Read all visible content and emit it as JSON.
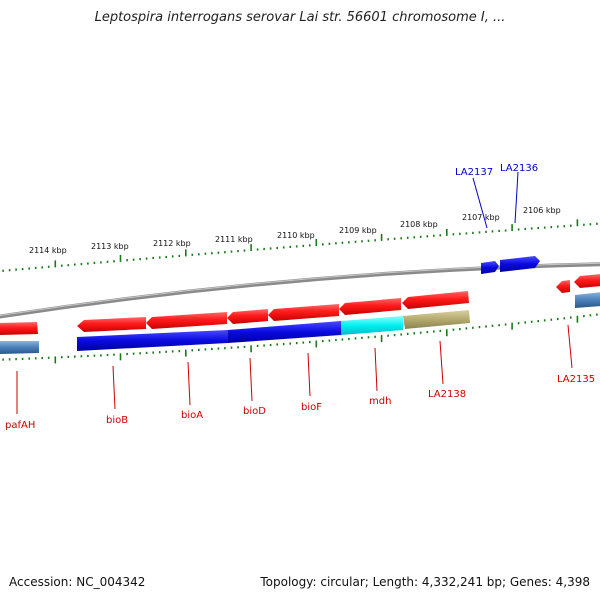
{
  "title": "Leptospira interrogans serovar Lai str. 56601 chromosome I, ...",
  "footer": {
    "accession": "Accession: NC_004342",
    "summary": "Topology: circular; Length: 4,332,241 bp; Genes: 4,398"
  },
  "colors": {
    "forward_gene": "#ff1a1a",
    "reverse_gene_blue": "#0a0ae0",
    "reverse_gene_cyan": "#00f0f0",
    "reverse_gene_olive": "#b4aa6e",
    "reverse_gene_steel": "#4a7fb8",
    "axis_ticks": "#1a7a1a",
    "backbone": "#8a8a8a",
    "forward_label": "#cc0000",
    "reverse_label": "#0000cc"
  },
  "scale": {
    "unit": "kbp",
    "labels": [
      "2114 kbp",
      "2113 kbp",
      "2112 kbp",
      "2111 kbp",
      "2110 kbp",
      "2109 kbp",
      "2108 kbp",
      "2107 kbp",
      "2106 kbp"
    ]
  },
  "genes": [
    {
      "name": "pafAH",
      "strand": "lower",
      "color": "forward_gene",
      "label_color": "forward_label"
    },
    {
      "name": "bioB",
      "strand": "lower",
      "color": "forward_gene",
      "label_color": "forward_label"
    },
    {
      "name": "bioA",
      "strand": "lower",
      "color": "forward_gene",
      "label_color": "forward_label"
    },
    {
      "name": "bioD",
      "strand": "lower",
      "color": "forward_gene",
      "label_color": "forward_label"
    },
    {
      "name": "bioF",
      "strand": "lower",
      "color": "forward_gene",
      "label_color": "forward_label"
    },
    {
      "name": "mdh",
      "strand": "lower",
      "color": "forward_gene",
      "label_color": "forward_label"
    },
    {
      "name": "LA2138",
      "strand": "lower",
      "color": "forward_gene",
      "label_color": "forward_label"
    },
    {
      "name": "LA2137",
      "strand": "upper",
      "color": "reverse_gene_blue",
      "label_color": "reverse_label"
    },
    {
      "name": "LA2136",
      "strand": "upper",
      "color": "reverse_gene_blue",
      "label_color": "reverse_label"
    },
    {
      "name": "LA2135",
      "strand": "lower",
      "color": "forward_gene",
      "label_color": "forward_label"
    }
  ]
}
